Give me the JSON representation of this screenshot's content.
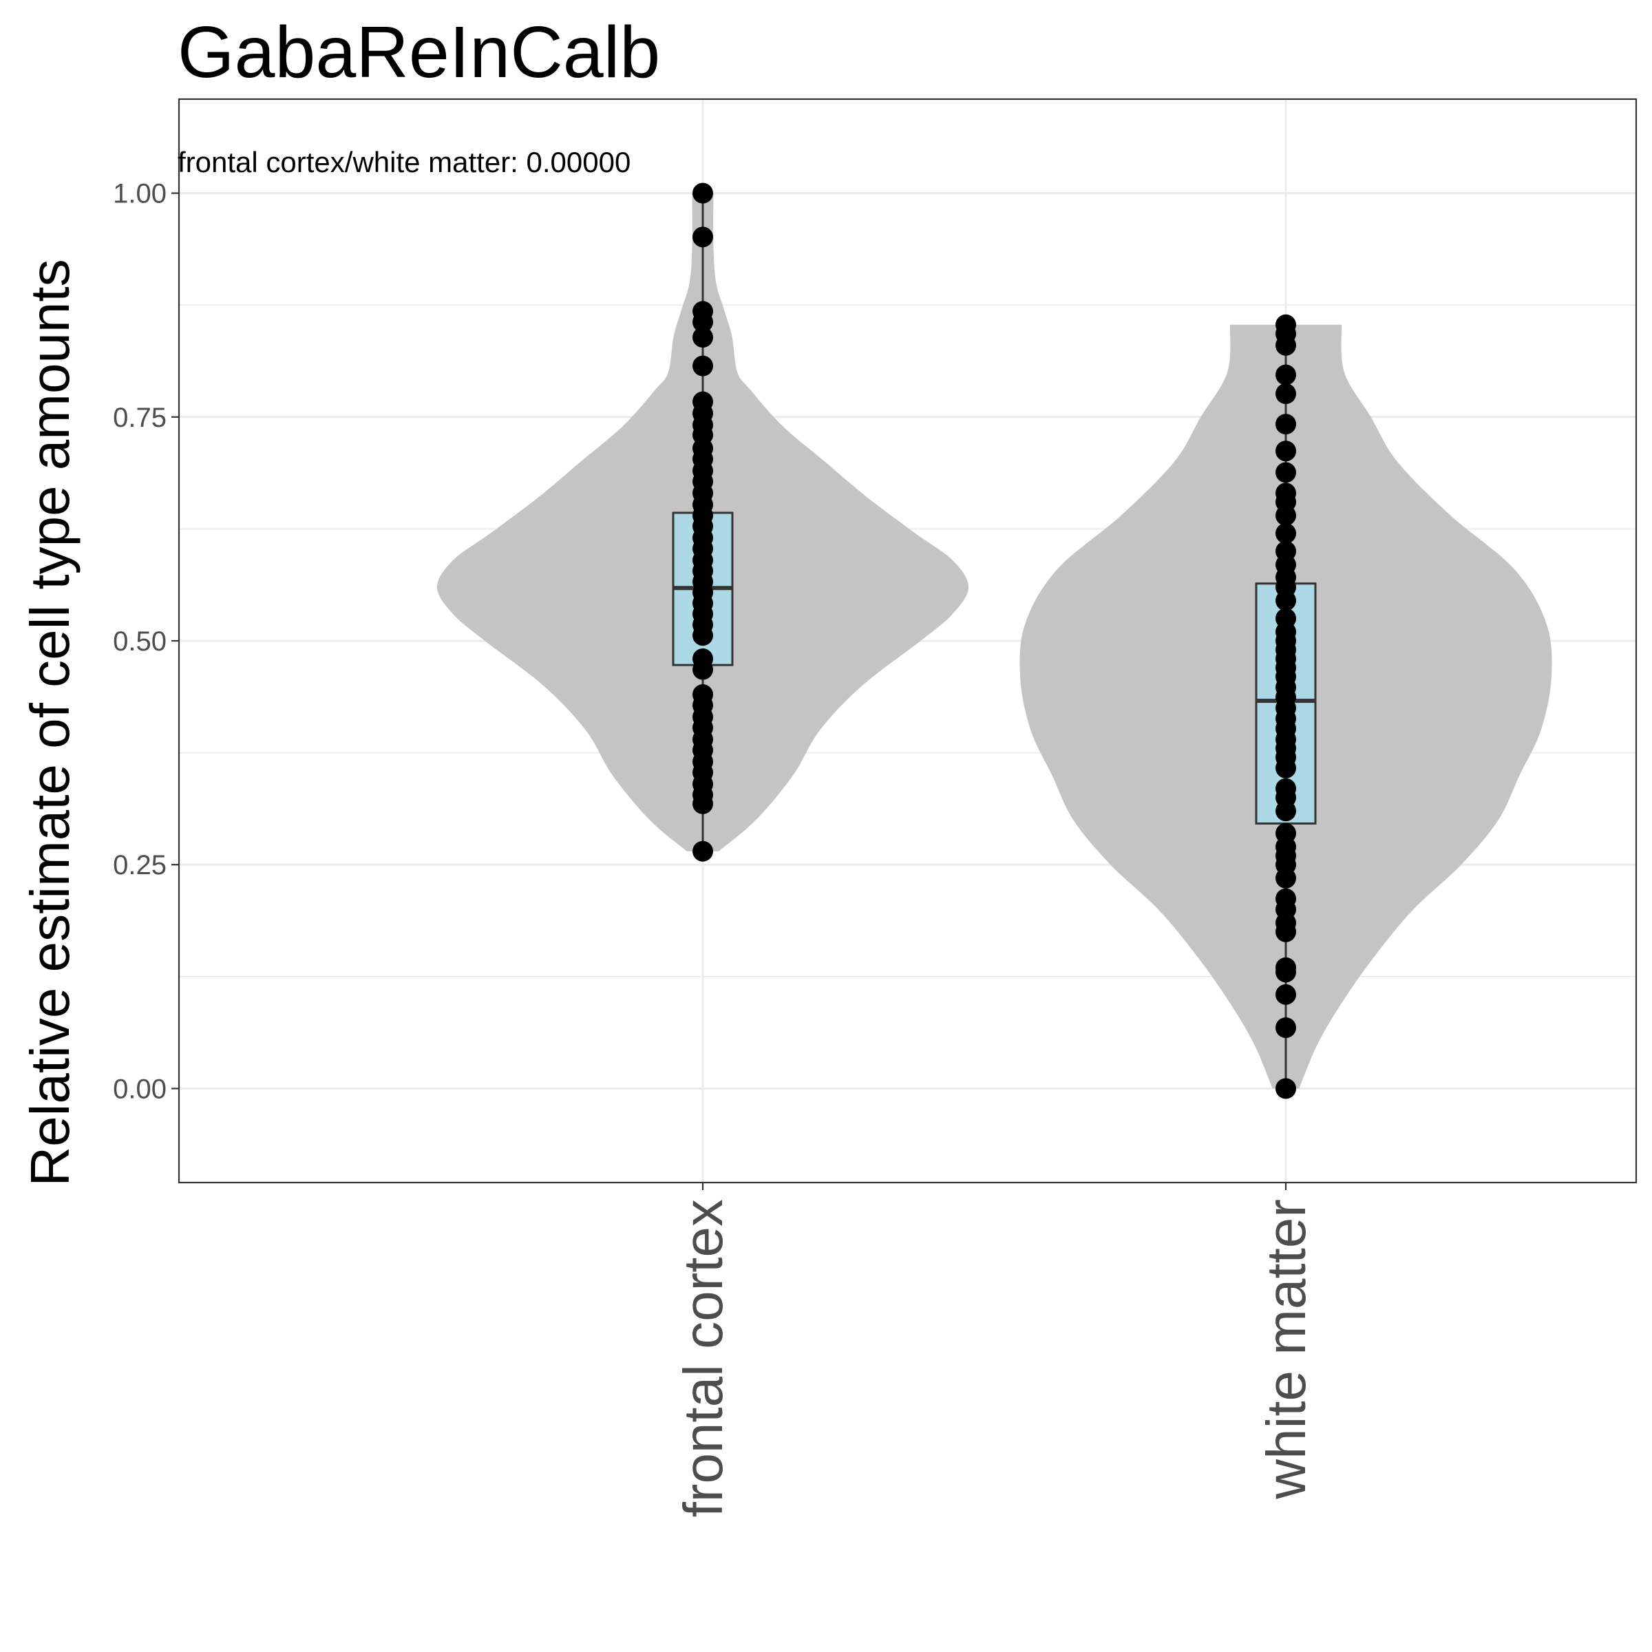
{
  "chart_data": {
    "type": "violin",
    "title": "GabaReInCalb",
    "ylabel": "Relative estimate of cell type amounts",
    "xlabel": "",
    "ylim": [
      -0.105,
      1.105
    ],
    "y_ticks": [
      0.0,
      0.25,
      0.5,
      0.75,
      1.0
    ],
    "y_tick_labels": [
      "0.00",
      "0.25",
      "0.50",
      "0.75",
      "1.00"
    ],
    "grid": true,
    "annotation": "frontal cortex/white matter: 0.00000",
    "categories": [
      "frontal cortex",
      "white matter"
    ],
    "colors": {
      "violin": "#c4c4c4",
      "box": "#add8e6",
      "point": "#000000",
      "outline": "#333333"
    },
    "series": [
      {
        "category": "frontal cortex",
        "box": {
          "q1": 0.473,
          "median": 0.559,
          "q3": 0.643,
          "lower_whisker": 0.265,
          "upper_whisker": 1.0
        },
        "density": [
          [
            0.265,
            0.06
          ],
          [
            0.3,
            0.2
          ],
          [
            0.35,
            0.34
          ],
          [
            0.4,
            0.44
          ],
          [
            0.45,
            0.6
          ],
          [
            0.5,
            0.82
          ],
          [
            0.53,
            0.94
          ],
          [
            0.56,
            1.0
          ],
          [
            0.59,
            0.94
          ],
          [
            0.62,
            0.8
          ],
          [
            0.66,
            0.62
          ],
          [
            0.7,
            0.46
          ],
          [
            0.74,
            0.3
          ],
          [
            0.78,
            0.18
          ],
          [
            0.8,
            0.13
          ],
          [
            0.84,
            0.11
          ],
          [
            0.87,
            0.08
          ],
          [
            0.9,
            0.05
          ],
          [
            0.94,
            0.04
          ],
          [
            1.0,
            0.04
          ]
        ],
        "points": [
          1.0,
          0.951,
          0.868,
          0.856,
          0.839,
          0.807,
          0.767,
          0.754,
          0.741,
          0.73,
          0.715,
          0.703,
          0.69,
          0.678,
          0.665,
          0.652,
          0.64,
          0.628,
          0.615,
          0.603,
          0.59,
          0.578,
          0.566,
          0.554,
          0.542,
          0.53,
          0.518,
          0.506,
          0.48,
          0.468,
          0.44,
          0.428,
          0.415,
          0.403,
          0.39,
          0.378,
          0.365,
          0.353,
          0.34,
          0.328,
          0.318,
          0.265
        ]
      },
      {
        "category": "white matter",
        "box": {
          "q1": 0.296,
          "median": 0.433,
          "q3": 0.564,
          "lower_whisker": 0.0,
          "upper_whisker": 0.853
        },
        "density": [
          [
            0.0,
            0.05
          ],
          [
            0.05,
            0.12
          ],
          [
            0.1,
            0.22
          ],
          [
            0.15,
            0.34
          ],
          [
            0.2,
            0.48
          ],
          [
            0.25,
            0.66
          ],
          [
            0.3,
            0.8
          ],
          [
            0.35,
            0.88
          ],
          [
            0.4,
            0.96
          ],
          [
            0.46,
            1.0
          ],
          [
            0.52,
            0.98
          ],
          [
            0.58,
            0.86
          ],
          [
            0.64,
            0.62
          ],
          [
            0.7,
            0.42
          ],
          [
            0.75,
            0.32
          ],
          [
            0.8,
            0.22
          ],
          [
            0.853,
            0.21
          ]
        ],
        "points": [
          0.853,
          0.843,
          0.83,
          0.797,
          0.776,
          0.742,
          0.712,
          0.688,
          0.665,
          0.655,
          0.64,
          0.62,
          0.6,
          0.585,
          0.571,
          0.56,
          0.545,
          0.525,
          0.51,
          0.5,
          0.49,
          0.48,
          0.47,
          0.46,
          0.448,
          0.437,
          0.425,
          0.413,
          0.402,
          0.39,
          0.38,
          0.37,
          0.358,
          0.335,
          0.325,
          0.31,
          0.285,
          0.27,
          0.26,
          0.25,
          0.235,
          0.212,
          0.2,
          0.185,
          0.175,
          0.135,
          0.13,
          0.105,
          0.068,
          0.0
        ]
      }
    ]
  }
}
